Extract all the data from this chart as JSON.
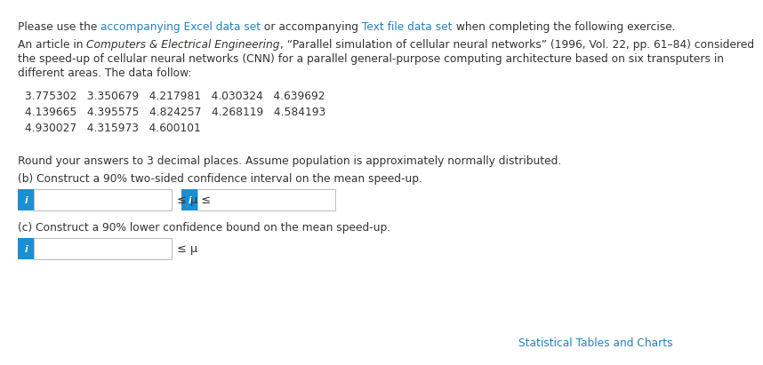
{
  "line1_parts": [
    {
      "text": "Please use the ",
      "color": "#333333",
      "style": "normal",
      "weight": "normal"
    },
    {
      "text": "accompanying Excel data set",
      "color": "#2980B9",
      "style": "normal",
      "weight": "normal"
    },
    {
      "text": " or accompanying ",
      "color": "#333333",
      "style": "normal",
      "weight": "normal"
    },
    {
      "text": "Text file data set",
      "color": "#2980B9",
      "style": "normal",
      "weight": "normal"
    },
    {
      "text": " when completing the following exercise.",
      "color": "#333333",
      "style": "normal",
      "weight": "normal"
    }
  ],
  "para_line1_parts": [
    {
      "text": "An article in ",
      "color": "#333333",
      "style": "normal",
      "weight": "normal"
    },
    {
      "text": "Computers & Electrical Engineering",
      "color": "#333333",
      "style": "italic",
      "weight": "normal"
    },
    {
      "text": ", “Parallel simulation of cellular neural networks” (1996, Vol. 22, pp. 61–84) considered",
      "color": "#333333",
      "style": "normal",
      "weight": "normal"
    }
  ],
  "para_line2": "the speed-up of cellular neural networks (CNN) for a parallel general-purpose computing architecture based on six transputers in",
  "para_line3": "different areas. The data follow:",
  "data_row1": "3.775302   3.350679   4.217981   4.030324   4.639692",
  "data_row2": "4.139665   4.395575   4.824257   4.268119   4.584193",
  "data_row3": "4.930027   4.315973   4.600101",
  "round_note": "Round your answers to 3 decimal places. Assume population is approximately normally distributed.",
  "part_b_label": "(b) Construct a 90% two-sided confidence interval on the mean speed-up.",
  "part_c_label": "(c) Construct a 90% lower confidence bound on the mean speed-up.",
  "leq_mu_leq": "≤ μ ≤",
  "leq_mu": "≤ μ",
  "stat_tables": "Statistical Tables and Charts",
  "link_color": "#2980B9",
  "stat_tables_color": "#2980B9",
  "box_blue_color": "#1B8FD2",
  "input_border_color": "#BBBBBB",
  "bg_color": "#FFFFFF",
  "text_color": "#333333",
  "font_size": 8.8
}
